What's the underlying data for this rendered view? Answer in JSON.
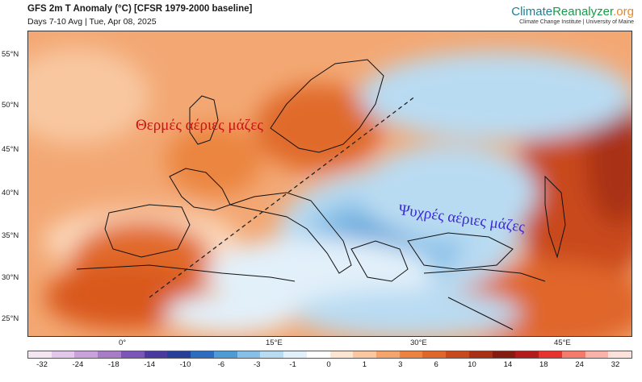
{
  "header": {
    "title": "GFS 2m T Anomaly (°C) [CFSR 1979-2000 baseline]",
    "subtitle": "Days 7-10 Avg | Tue, Apr 08, 2025"
  },
  "brand": {
    "name_part1": "Climate",
    "name_part2": "Reanalyzer",
    "name_part3": ".org",
    "sub": "Climate Change Institute | University of Maine"
  },
  "axes": {
    "lat_labels": [
      "55°N",
      "50°N",
      "45°N",
      "40°N",
      "35°N",
      "30°N",
      "25°N"
    ],
    "lon_labels": [
      "0°",
      "15°E",
      "30°E",
      "45°E"
    ]
  },
  "colorbar": {
    "labels": [
      "-32",
      "-24",
      "-18",
      "-14",
      "-10",
      "-6",
      "-3",
      "-1",
      "0",
      "1",
      "3",
      "6",
      "10",
      "14",
      "18",
      "24",
      "32"
    ],
    "colors": [
      "#f3e6f1",
      "#e3c7e8",
      "#c9a2dc",
      "#a97cc8",
      "#7c55b8",
      "#4a3aa0",
      "#283f9a",
      "#2d6cc0",
      "#4f9bd6",
      "#86bfe7",
      "#b9dbf2",
      "#e2f0fa",
      "#ffffff",
      "#fde6d1",
      "#fbc7a0",
      "#f5a46b",
      "#ec8341",
      "#e0662a",
      "#c9481c",
      "#a93015",
      "#861c11",
      "#b41a1a",
      "#e8322d",
      "#f47a6b",
      "#f9b3a8",
      "#fde2dc"
    ]
  },
  "overlays": {
    "warm_text": "Θερμές αέριες μάζες",
    "cold_text": "Ψυχρές αέριες μάζες"
  }
}
